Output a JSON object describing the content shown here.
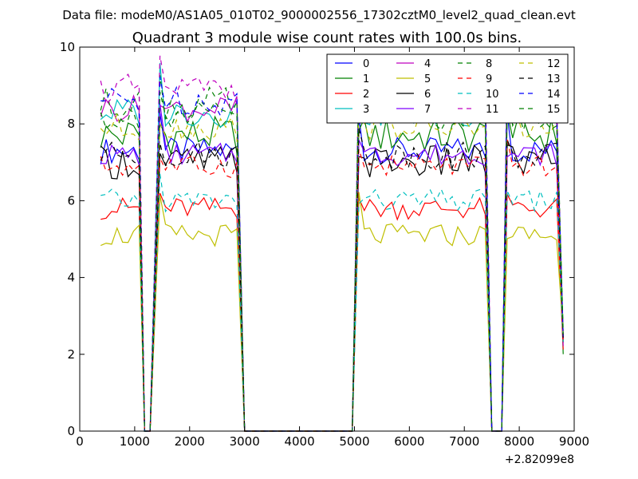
{
  "header": {
    "data_file_label": "Data file: modeM0/AS1A05_010T02_9000002556_17302cztM0_level2_quad_clean.evt"
  },
  "chart_data": {
    "type": "line",
    "title": "Quadrant 3 module wise count rates with 100.0s bins.",
    "xlabel": "",
    "ylabel": "",
    "x_offset_label": "+2.82099e8",
    "xlim": [
      0,
      9000
    ],
    "ylim": [
      0,
      10
    ],
    "x_ticks": [
      0,
      1000,
      2000,
      3000,
      4000,
      5000,
      6000,
      7000,
      8000,
      9000
    ],
    "y_ticks": [
      0,
      2,
      4,
      6,
      8,
      10
    ],
    "legend_position": "top-right",
    "series": [
      {
        "name": "0",
        "color": "#0000ff",
        "style": "solid",
        "base": 7.3,
        "amp": 0.35
      },
      {
        "name": "1",
        "color": "#008000",
        "style": "solid",
        "base": 7.7,
        "amp": 0.5
      },
      {
        "name": "2",
        "color": "#ff0000",
        "style": "solid",
        "base": 5.8,
        "amp": 0.3
      },
      {
        "name": "3",
        "color": "#00bfbf",
        "style": "solid",
        "base": 8.3,
        "amp": 0.4
      },
      {
        "name": "4",
        "color": "#bf00bf",
        "style": "solid",
        "base": 8.4,
        "amp": 0.35
      },
      {
        "name": "5",
        "color": "#bfbf00",
        "style": "solid",
        "base": 5.1,
        "amp": 0.3
      },
      {
        "name": "6",
        "color": "#000000",
        "style": "solid",
        "base": 7.0,
        "amp": 0.45
      },
      {
        "name": "7",
        "color": "#7f00ff",
        "style": "solid",
        "base": 7.2,
        "amp": 0.3
      },
      {
        "name": "8",
        "color": "#008000",
        "style": "dashed",
        "base": 8.5,
        "amp": 0.45
      },
      {
        "name": "9",
        "color": "#ff0000",
        "style": "dashed",
        "base": 6.9,
        "amp": 0.3
      },
      {
        "name": "10",
        "color": "#00bfbf",
        "style": "dashed",
        "base": 6.0,
        "amp": 0.3
      },
      {
        "name": "11",
        "color": "#bf00bf",
        "style": "dashed",
        "base": 8.9,
        "amp": 0.4
      },
      {
        "name": "12",
        "color": "#bfbf00",
        "style": "dashed",
        "base": 7.9,
        "amp": 0.35
      },
      {
        "name": "13",
        "color": "#000000",
        "style": "dashed",
        "base": 7.2,
        "amp": 0.35
      },
      {
        "name": "14",
        "color": "#0000ff",
        "style": "dashed",
        "base": 8.6,
        "amp": 0.4
      },
      {
        "name": "15",
        "color": "#008000",
        "style": "dashed",
        "base": 8.2,
        "amp": 0.4
      }
    ],
    "segments": [
      {
        "x_start": 380,
        "x_end": 1080
      },
      {
        "x_start": 1460,
        "x_end": 2880
      },
      {
        "x_start": 5080,
        "x_end": 7400
      },
      {
        "x_start": 7780,
        "x_end": 8720
      }
    ],
    "gaps": [
      {
        "x_start": 1180,
        "x_end": 1280
      },
      {
        "x_start": 3000,
        "x_end": 4960
      },
      {
        "x_start": 7500,
        "x_end": 7680
      }
    ],
    "endpoint_x": 8800,
    "endpoint_value": 2.3,
    "bin_size": 100
  }
}
